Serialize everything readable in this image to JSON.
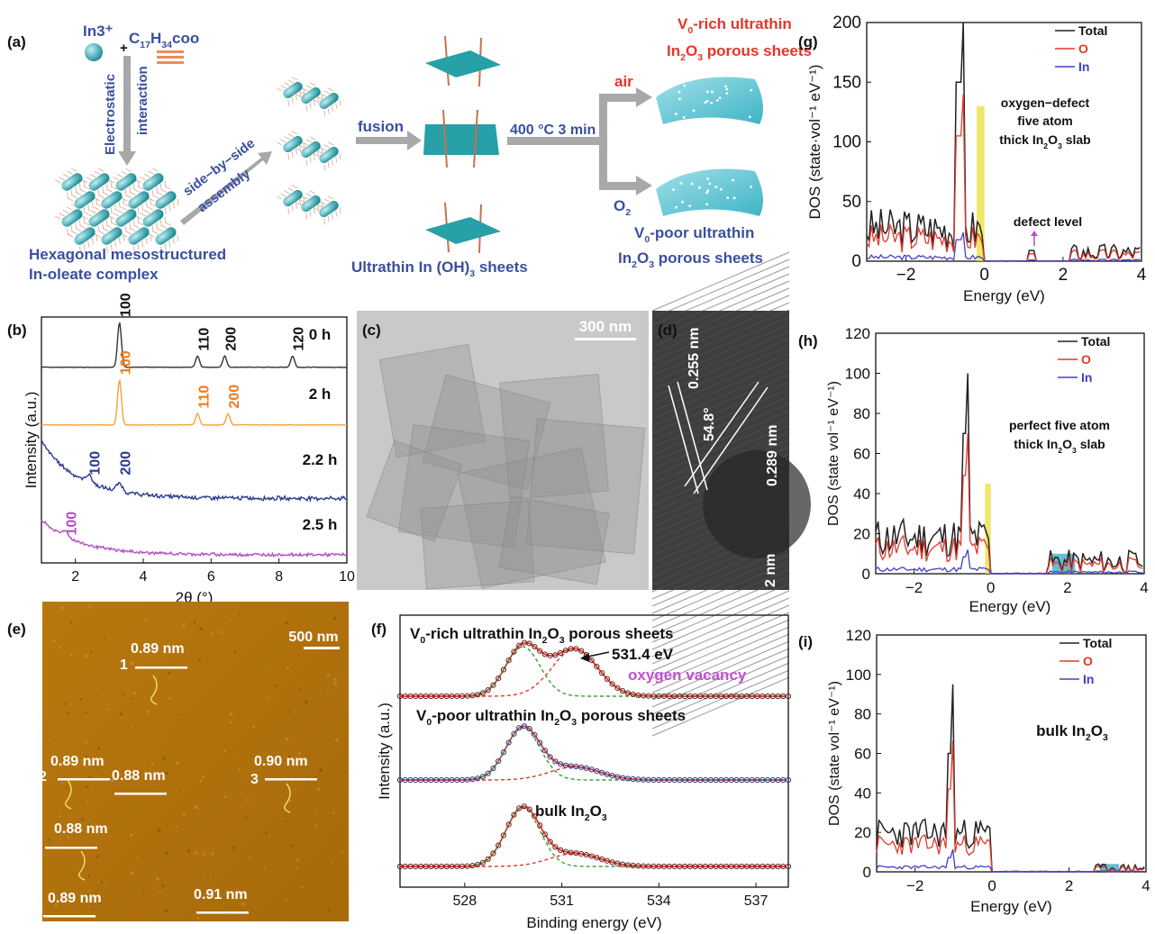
{
  "panels": {
    "a": {
      "label": "(a)",
      "in3": "In3⁺",
      "oleate_c": "C",
      "oleate_17": "17",
      "oleate_h": "H",
      "oleate_34": "34",
      "oleate_coo": "coo",
      "plus": "+",
      "electrostatic": "Electrostatic",
      "interaction": "interaction",
      "side_by_side": "side−by−side",
      "assembly": "assembly",
      "fusion": "fusion",
      "condition": "400 °C 3 min",
      "air": "air",
      "o2": "O",
      "o2_sub": "2",
      "hex_line1": "Hexagonal mesostructured",
      "hex_line2": "In-oleate complex",
      "sheets_label_a": "Ultrathin In (OH)",
      "sheets_label_sub": "3",
      "sheets_label_b": " sheets",
      "rich_line1_a": "V",
      "rich_line1_sub": "0",
      "rich_line1_b": "-rich ultrathin",
      "rich_line2_a": "In",
      "rich_line2_sub1": "2",
      "rich_line2_b": "O",
      "rich_line2_sub2": "3",
      "rich_line2_c": " porous sheets",
      "poor_line1_a": "V",
      "poor_line1_sub": "0",
      "poor_line1_b": "-poor ultrathin",
      "poor_line2_a": "In",
      "poor_line2_sub1": "2",
      "poor_line2_b": "O",
      "poor_line2_sub2": "3",
      "poor_line2_c": " porous sheets",
      "colors": {
        "blue_text": "#3a4fa0",
        "red_text": "#e8342a",
        "teal": "#2aa6b0"
      }
    },
    "c": {
      "label": "(c)",
      "scale": "300 nm"
    },
    "d": {
      "label": "(d)",
      "d1": "0.255 nm",
      "angle": "54.8°",
      "d2": "0.289 nm",
      "scale": "2 nm"
    },
    "e": {
      "label": "(e)",
      "scale": "500 nm",
      "heights": [
        "0.89 nm",
        "0.89 nm",
        "0.88 nm",
        "0.90 nm",
        "0.88 nm",
        "0.89 nm",
        "0.91 nm"
      ],
      "markers": [
        "1",
        "2",
        "3"
      ]
    }
  },
  "chart_data": [
    {
      "id": "b",
      "label": "(b)",
      "type": "line",
      "xlabel": "2θ (°)",
      "ylabel": "Intensity (a.u.)",
      "xlim": [
        1,
        10
      ],
      "xticks": [
        "2",
        "4",
        "6",
        "8",
        "10"
      ],
      "series": [
        {
          "name": "0 h",
          "color": "#333333",
          "peaks": [
            [
              3.3,
              "100"
            ],
            [
              5.6,
              "110"
            ],
            [
              6.4,
              "200"
            ],
            [
              8.4,
              "120"
            ]
          ],
          "peak_color": "#111111"
        },
        {
          "name": "2 h",
          "color": "#f5a23a",
          "peaks": [
            [
              3.3,
              "100"
            ],
            [
              5.6,
              "110"
            ],
            [
              6.5,
              "200"
            ]
          ],
          "peak_color": "#f07a1a"
        },
        {
          "name": "2.2 h",
          "color": "#2b3a8f",
          "peaks": [
            [
              2.4,
              "100"
            ],
            [
              3.3,
              "200"
            ]
          ],
          "peak_color": "#2b3a8f"
        },
        {
          "name": "2.5 h",
          "color": "#b24fc4",
          "peaks": [
            [
              1.7,
              "100"
            ]
          ],
          "peak_color": "#b24fc4"
        }
      ]
    },
    {
      "id": "f",
      "label": "(f)",
      "type": "line",
      "xlabel": "Binding energy (eV)",
      "ylabel": "Intensity (a.u.)",
      "xlim": [
        526,
        538
      ],
      "xticks": [
        "528",
        "531",
        "534",
        "537"
      ],
      "series": [
        {
          "name_a": "V",
          "name_sub": "0",
          "name_b": "-rich ultrathin In",
          "name_sub2": "2",
          "name_c": "O",
          "name_sub3": "3",
          "name_d": " porous sheets",
          "peak1": 529.8,
          "peak2": 531.4,
          "amp1": 1.0,
          "amp2": 0.95
        },
        {
          "name_a": "V",
          "name_sub": "0",
          "name_b": "-poor ultrathin In",
          "name_sub2": "2",
          "name_c": "O",
          "name_sub3": "3",
          "name_d": " porous sheets",
          "peak1": 529.8,
          "peak2": 531.4,
          "amp1": 1.0,
          "amp2": 0.25
        },
        {
          "name_a": "bulk In",
          "name_sub2": "2",
          "name_c": "O",
          "name_sub3": "3",
          "peak1": 529.8,
          "peak2": 531.4,
          "amp1": 1.0,
          "amp2": 0.22
        }
      ],
      "annotation_value": "531.4 eV",
      "annotation_text": "oxygen vacancy"
    },
    {
      "id": "g",
      "label": "(g)",
      "type": "line",
      "xlabel": "Energy (eV)",
      "ylabel": "DOS (state·vol⁻¹ eV⁻¹)",
      "xlim": [
        -3,
        4
      ],
      "ylim": [
        0,
        200
      ],
      "xticks": [
        "−2",
        "0",
        "2",
        "4"
      ],
      "yticks": [
        "0",
        "50",
        "100",
        "150",
        "200"
      ],
      "legend": [
        "Total",
        "O",
        "In"
      ],
      "note_lines": [
        "oxygen−defect",
        "five atom"
      ],
      "note_line3_a": "thick In",
      "note_line3_sub1": "2",
      "note_line3_b": "O",
      "note_line3_sub2": "3",
      "note_line3_c": " slab",
      "defect_label": "defect level"
    },
    {
      "id": "h",
      "label": "(h)",
      "type": "line",
      "xlabel": "Energy (eV)",
      "ylabel": "DOS (state vol⁻¹ eV⁻¹)",
      "xlim": [
        -3,
        4
      ],
      "ylim": [
        0,
        120
      ],
      "xticks": [
        "−2",
        "0",
        "2",
        "4"
      ],
      "yticks": [
        "0",
        "20",
        "40",
        "60",
        "80",
        "100",
        "120"
      ],
      "legend": [
        "Total",
        "O",
        "In"
      ],
      "note_lines": [
        "perfect five atom"
      ],
      "note_line3_a": "thick In",
      "note_line3_sub1": "2",
      "note_line3_b": "O",
      "note_line3_sub2": "3",
      "note_line3_c": " slab"
    },
    {
      "id": "i",
      "label": "(i)",
      "type": "line",
      "xlabel": "Energy (eV)",
      "ylabel": "DOS (state vol⁻¹ eV⁻¹)",
      "xlim": [
        -3,
        4
      ],
      "ylim": [
        0,
        120
      ],
      "xticks": [
        "−2",
        "0",
        "2",
        "4"
      ],
      "yticks": [
        "0",
        "20",
        "40",
        "60",
        "80",
        "100",
        "120"
      ],
      "legend": [
        "Total",
        "O",
        "In"
      ],
      "note_a": "bulk In",
      "note_sub1": "2",
      "note_b": "O",
      "note_sub2": "3"
    }
  ]
}
